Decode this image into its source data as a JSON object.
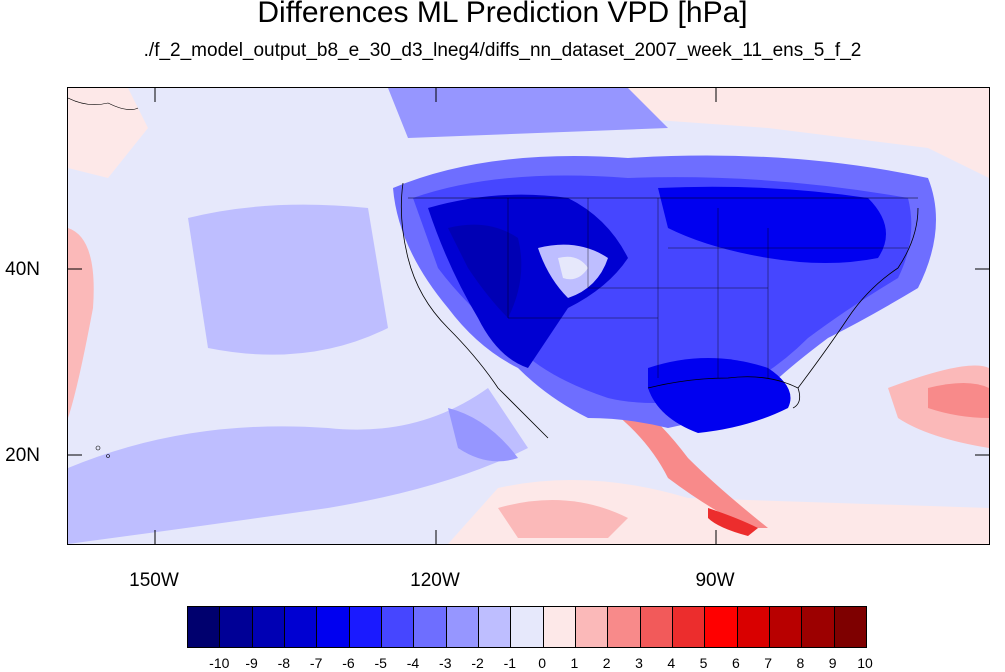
{
  "title": "Differences ML Prediction VPD [hPa]",
  "subtitle": "./f_2_model_output_b8_e_30_d3_lneg4/diffs_nn_dataset_2007_week_11_ens_5_f_2",
  "lat_labels": [
    "40N",
    "20N"
  ],
  "lon_labels": [
    "150W",
    "120W",
    "90W"
  ],
  "colorbar": {
    "labels": [
      "-10",
      "-9",
      "-8",
      "-7",
      "-6",
      "-5",
      "-4",
      "-3",
      "-2",
      "-1",
      "0",
      "1",
      "2",
      "3",
      "4",
      "5",
      "6",
      "7",
      "8",
      "9",
      "10"
    ],
    "colors": [
      "#00006e",
      "#000096",
      "#0000b4",
      "#0000d2",
      "#0000f0",
      "#1a1aff",
      "#4646ff",
      "#6e6eff",
      "#9696ff",
      "#bebeff",
      "#e6e8fb",
      "#fde8e8",
      "#fbb9b9",
      "#f88a8a",
      "#f25a5a",
      "#ec2d2d",
      "#ff0000",
      "#d90000",
      "#b80000",
      "#9c0000",
      "#7e0000"
    ]
  }
}
